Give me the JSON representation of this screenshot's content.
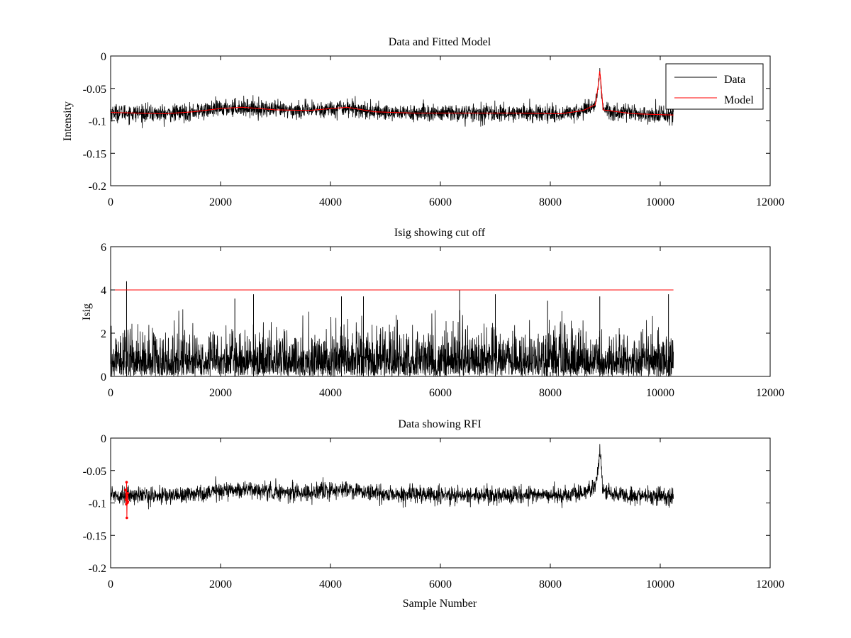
{
  "chart_data": [
    {
      "type": "line",
      "title": "Data and Fitted Model",
      "xlabel": "",
      "ylabel": "Intensity",
      "xlim": [
        0,
        12000
      ],
      "ylim": [
        -0.2,
        0
      ],
      "xticks": [
        0,
        2000,
        4000,
        6000,
        8000,
        10000,
        12000
      ],
      "xtick_labels": [
        "0",
        "2000",
        "4000",
        "6000",
        "8000",
        "10000",
        "12000"
      ],
      "yticks": [
        -0.2,
        -0.15,
        -0.1,
        -0.05,
        0
      ],
      "ytick_labels": [
        "-0.2",
        "-0.15",
        "-0.1",
        "-0.05",
        "0"
      ],
      "legend": {
        "position": "top-right",
        "entries": [
          "Data",
          "Model"
        ]
      },
      "grid": false,
      "series": [
        {
          "name": "Data",
          "color": "#000000",
          "kind": "noisy",
          "noise_amplitude": 0.012,
          "x_range": [
            0,
            10240
          ],
          "baseline": [
            [
              0,
              -0.087
            ],
            [
              500,
              -0.088
            ],
            [
              1000,
              -0.089
            ],
            [
              1500,
              -0.086
            ],
            [
              2000,
              -0.081
            ],
            [
              2400,
              -0.079
            ],
            [
              3000,
              -0.083
            ],
            [
              3600,
              -0.084
            ],
            [
              4300,
              -0.079
            ],
            [
              4800,
              -0.086
            ],
            [
              5500,
              -0.088
            ],
            [
              6500,
              -0.088
            ],
            [
              7500,
              -0.088
            ],
            [
              8200,
              -0.089
            ],
            [
              8600,
              -0.084
            ],
            [
              8820,
              -0.075
            ],
            [
              8880,
              -0.04
            ],
            [
              8900,
              -0.018
            ],
            [
              8920,
              -0.04
            ],
            [
              8960,
              -0.083
            ],
            [
              9500,
              -0.089
            ],
            [
              10240,
              -0.091
            ]
          ]
        },
        {
          "name": "Model",
          "color": "#ff0000",
          "kind": "smooth",
          "x_range": [
            0,
            10240
          ],
          "baseline": [
            [
              0,
              -0.087
            ],
            [
              500,
              -0.088
            ],
            [
              1000,
              -0.089
            ],
            [
              1500,
              -0.086
            ],
            [
              2000,
              -0.081
            ],
            [
              2400,
              -0.079
            ],
            [
              3000,
              -0.083
            ],
            [
              3600,
              -0.084
            ],
            [
              4300,
              -0.079
            ],
            [
              4800,
              -0.086
            ],
            [
              5500,
              -0.088
            ],
            [
              6500,
              -0.088
            ],
            [
              7500,
              -0.088
            ],
            [
              8200,
              -0.089
            ],
            [
              8600,
              -0.084
            ],
            [
              8820,
              -0.075
            ],
            [
              8880,
              -0.04
            ],
            [
              8900,
              -0.022
            ],
            [
              8920,
              -0.04
            ],
            [
              8960,
              -0.083
            ],
            [
              9500,
              -0.089
            ],
            [
              10240,
              -0.091
            ]
          ]
        }
      ]
    },
    {
      "type": "line",
      "title": "Isig showing cut off",
      "xlabel": "",
      "ylabel": "Isig",
      "xlim": [
        0,
        12000
      ],
      "ylim": [
        0,
        6
      ],
      "xticks": [
        0,
        2000,
        4000,
        6000,
        8000,
        10000,
        12000
      ],
      "xtick_labels": [
        "0",
        "2000",
        "4000",
        "6000",
        "8000",
        "10000",
        "12000"
      ],
      "yticks": [
        0,
        2,
        4,
        6
      ],
      "ytick_labels": [
        "0",
        "2",
        "4",
        "6"
      ],
      "grid": false,
      "series": [
        {
          "color": "#000000",
          "kind": "abs_noise",
          "x_range": [
            0,
            10240
          ],
          "typical_max": 2.4,
          "peaks": [
            [
              290,
              4.4
            ],
            [
              2260,
              3.6
            ],
            [
              2600,
              3.8
            ],
            [
              4200,
              3.7
            ],
            [
              4600,
              3.7
            ],
            [
              6350,
              4.0
            ],
            [
              7000,
              3.8
            ],
            [
              7950,
              3.5
            ],
            [
              8900,
              3.7
            ],
            [
              10150,
              3.8
            ]
          ]
        },
        {
          "color": "#ff0000",
          "kind": "hline",
          "x_range": [
            0,
            10240
          ],
          "value": 4
        }
      ]
    },
    {
      "type": "line",
      "title": "Data showing RFI",
      "xlabel": "Sample Number",
      "ylabel": "",
      "xlim": [
        0,
        12000
      ],
      "ylim": [
        -0.2,
        0
      ],
      "xticks": [
        0,
        2000,
        4000,
        6000,
        8000,
        10000,
        12000
      ],
      "xtick_labels": [
        "0",
        "2000",
        "4000",
        "6000",
        "8000",
        "10000",
        "12000"
      ],
      "yticks": [
        -0.2,
        -0.15,
        -0.1,
        -0.05,
        0
      ],
      "ytick_labels": [
        "-0.2",
        "-0.15",
        "-0.1",
        "-0.05",
        "0"
      ],
      "grid": false,
      "series": [
        {
          "color": "#000000",
          "kind": "noisy",
          "noise_amplitude": 0.012,
          "x_range": [
            0,
            10240
          ],
          "baseline": [
            [
              0,
              -0.087
            ],
            [
              500,
              -0.088
            ],
            [
              1000,
              -0.089
            ],
            [
              1500,
              -0.086
            ],
            [
              2000,
              -0.081
            ],
            [
              2400,
              -0.079
            ],
            [
              3000,
              -0.083
            ],
            [
              3600,
              -0.084
            ],
            [
              4300,
              -0.079
            ],
            [
              4800,
              -0.086
            ],
            [
              5500,
              -0.088
            ],
            [
              6500,
              -0.088
            ],
            [
              7500,
              -0.088
            ],
            [
              8200,
              -0.089
            ],
            [
              8600,
              -0.084
            ],
            [
              8820,
              -0.075
            ],
            [
              8880,
              -0.04
            ],
            [
              8900,
              -0.018
            ],
            [
              8920,
              -0.04
            ],
            [
              8960,
              -0.083
            ],
            [
              9500,
              -0.089
            ],
            [
              10240,
              -0.091
            ]
          ]
        },
        {
          "color": "#ff0000",
          "kind": "markers",
          "points": [
            [
              270,
              -0.08
            ],
            [
              280,
              -0.095
            ],
            [
              285,
              -0.102
            ],
            [
              290,
              -0.068
            ],
            [
              295,
              -0.123
            ],
            [
              300,
              -0.09
            ],
            [
              305,
              -0.1
            ],
            [
              310,
              -0.085
            ],
            [
              315,
              -0.098
            ]
          ]
        }
      ]
    }
  ]
}
